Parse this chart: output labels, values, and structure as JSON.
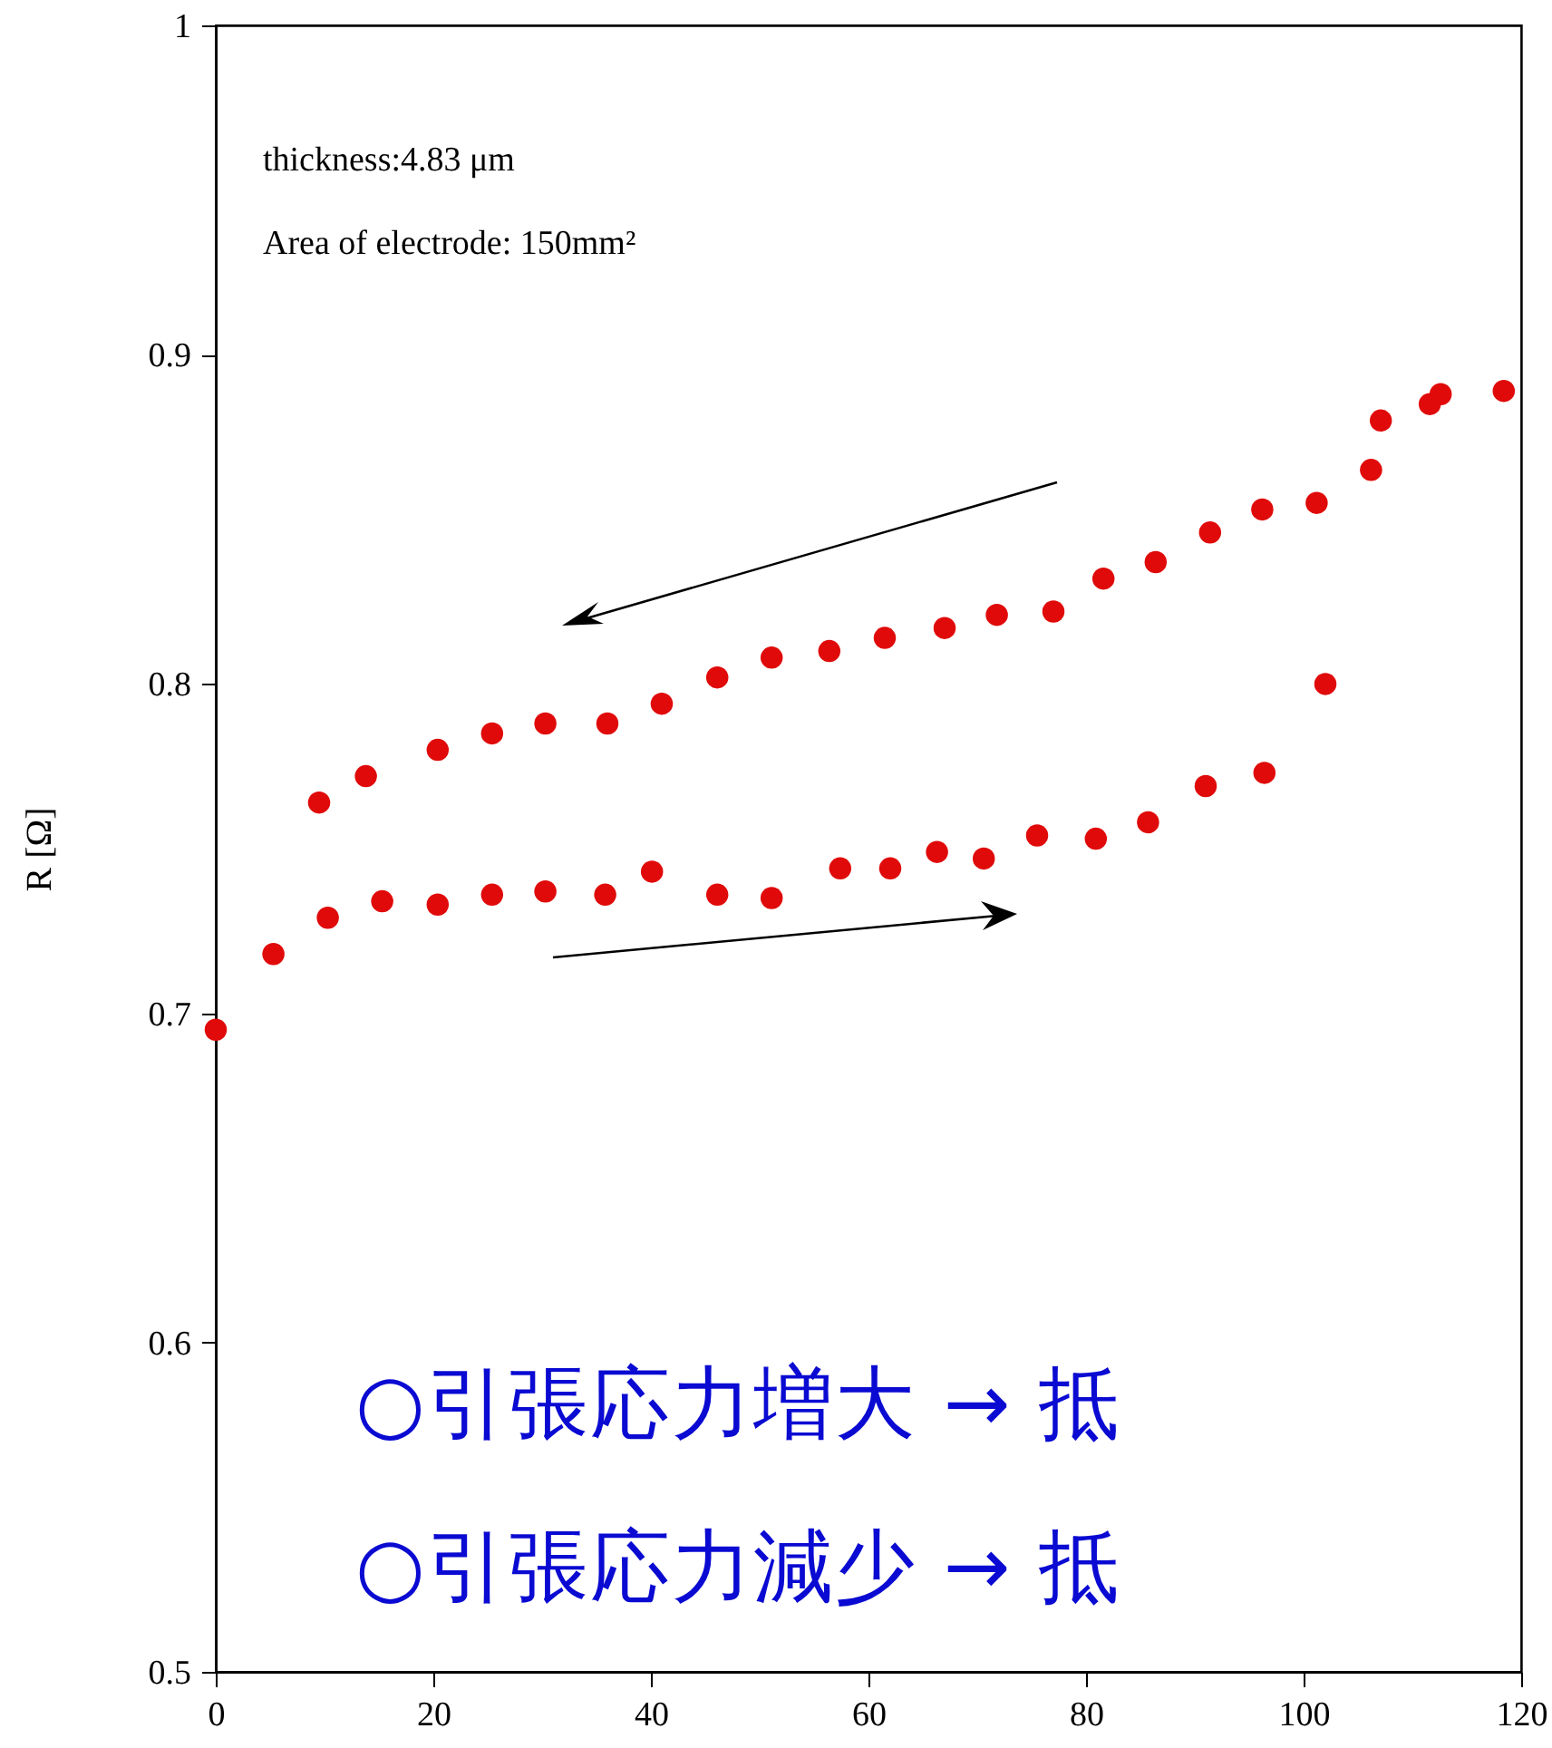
{
  "chart_data": {
    "type": "scatter",
    "ylabel": "R [Ω]",
    "x": [
      0,
      5.3,
      10.3,
      15.3,
      20.4,
      25.4,
      30.3,
      35.8,
      40.1,
      46.1,
      51.1,
      57.4,
      62.0,
      66.3,
      70.6,
      75.5,
      80.9,
      85.7,
      91.0,
      96.4,
      102.0,
      118.4,
      112.6,
      111.6,
      107.1,
      106.2,
      101.2,
      96.2,
      91.4,
      86.4,
      81.6,
      77.0,
      71.8,
      67.0,
      61.5,
      56.4,
      51.1,
      46.1,
      41.0,
      36.0,
      30.3,
      25.4,
      20.4,
      13.8,
      9.5
    ],
    "series": [
      {
        "color": "#e00a0a",
        "values": [
          0.695,
          0.718,
          0.729,
          0.734,
          0.733,
          0.736,
          0.737,
          0.736,
          0.743,
          0.736,
          0.735,
          0.744,
          0.744,
          0.749,
          0.747,
          0.754,
          0.753,
          0.758,
          0.769,
          0.773,
          0.8,
          0.889,
          0.888,
          0.885,
          0.88,
          0.865,
          0.855,
          0.853,
          0.846,
          0.837,
          0.832,
          0.822,
          0.821,
          0.817,
          0.814,
          0.81,
          0.808,
          0.802,
          0.794,
          0.788,
          0.788,
          0.785,
          0.78,
          0.772,
          0.764
        ]
      }
    ],
    "xlim": [
      0,
      120
    ],
    "xticks": [
      0,
      20,
      40,
      60,
      80,
      100,
      120
    ],
    "ylim": [
      0.5,
      1
    ],
    "yticks": [
      0.5,
      0.6,
      0.7,
      0.8,
      0.9,
      {
        "value": 1,
        "label": "1"
      }
    ],
    "marker": "circle",
    "grid": false,
    "annotations": [
      "thickness:4.83 μm",
      "Area of electrode: 150mm²",
      "○引張応力増大 → 抵",
      "○引張応力減少 → 抵"
    ]
  }
}
